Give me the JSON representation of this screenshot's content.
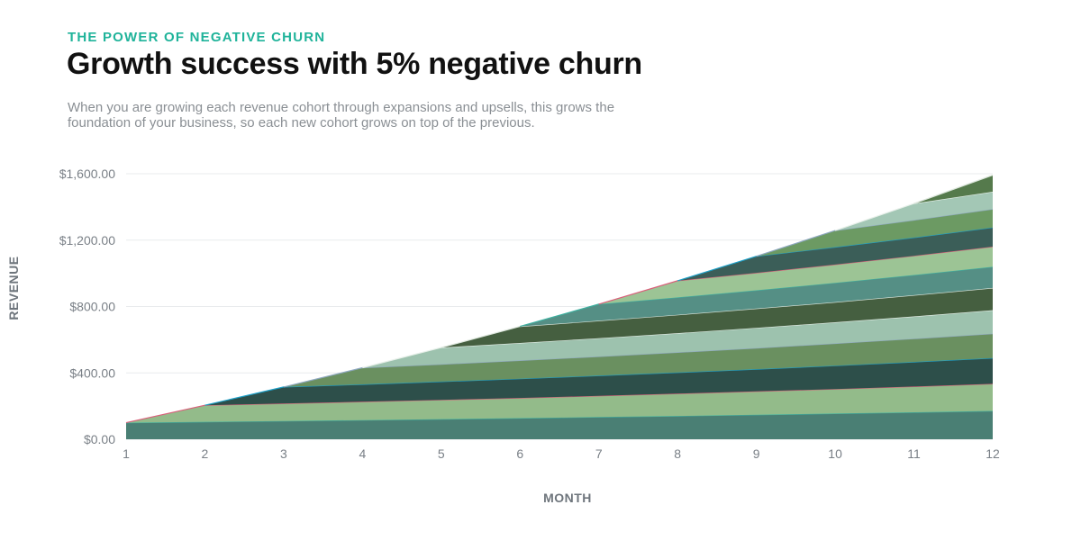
{
  "header": {
    "eyebrow": "THE POWER OF NEGATIVE CHURN",
    "title": "Growth success with 5% negative churn",
    "subtitle": "When you are growing each revenue cohort through expansions and upsells, this grows the foundation of your business, so each new cohort grows on top of the previous."
  },
  "chart_data": {
    "type": "area",
    "stacked": true,
    "xlabel": "MONTH",
    "ylabel": "REVENUE",
    "x": [
      1,
      2,
      3,
      4,
      5,
      6,
      7,
      8,
      9,
      10,
      11,
      12
    ],
    "ylim": [
      0,
      1600
    ],
    "yticks": [
      0,
      400,
      800,
      1200,
      1600
    ],
    "ytick_labels": [
      "$0.00",
      "$400.00",
      "$800.00",
      "$1,200.00",
      "$1,600.00"
    ],
    "grid": true,
    "legend": "none",
    "series": [
      {
        "start_month": 1,
        "values": [
          100,
          105,
          110.25,
          115.76,
          121.55,
          127.63,
          134.01,
          140.71,
          147.75,
          155.13,
          162.89,
          171.03
        ],
        "fill": "#4a7f74",
        "line": "#3fb0a0"
      },
      {
        "start_month": 2,
        "values": [
          0,
          100,
          105,
          110.25,
          115.76,
          121.55,
          127.63,
          134.01,
          140.71,
          147.75,
          155.13,
          162.89
        ],
        "fill": "#93bb8a",
        "line": "#d9607a"
      },
      {
        "start_month": 3,
        "values": [
          0,
          0,
          100,
          105,
          110.25,
          115.76,
          121.55,
          127.63,
          134.01,
          140.71,
          147.75,
          155.13
        ],
        "fill": "#2d4f4a",
        "line": "#1ea0c8"
      },
      {
        "start_month": 4,
        "values": [
          0,
          0,
          0,
          100,
          105,
          110.25,
          115.76,
          121.55,
          127.63,
          134.01,
          140.71,
          147.75
        ],
        "fill": "#6a9060",
        "line": "#8fa8c0"
      },
      {
        "start_month": 5,
        "values": [
          0,
          0,
          0,
          0,
          100,
          105,
          110.25,
          115.76,
          121.55,
          127.63,
          134.01,
          140.71
        ],
        "fill": "#9dc2ae",
        "line": "#e8f0ea"
      },
      {
        "start_month": 6,
        "values": [
          0,
          0,
          0,
          0,
          0,
          100,
          105,
          110.25,
          115.76,
          121.55,
          127.63,
          134.01
        ],
        "fill": "#455f40",
        "line": "#dfe8df"
      },
      {
        "start_month": 7,
        "values": [
          0,
          0,
          0,
          0,
          0,
          0,
          100,
          105,
          110.25,
          115.76,
          121.55,
          127.63
        ],
        "fill": "#558f85",
        "line": "#3fb0a0"
      },
      {
        "start_month": 8,
        "values": [
          0,
          0,
          0,
          0,
          0,
          0,
          0,
          100,
          105,
          110.25,
          115.76,
          121.55
        ],
        "fill": "#9cc495",
        "line": "#d9607a"
      },
      {
        "start_month": 9,
        "values": [
          0,
          0,
          0,
          0,
          0,
          0,
          0,
          0,
          100,
          105,
          110.25,
          115.76
        ],
        "fill": "#3b5e58",
        "line": "#1ea0c8"
      },
      {
        "start_month": 10,
        "values": [
          0,
          0,
          0,
          0,
          0,
          0,
          0,
          0,
          0,
          100,
          105,
          110.25
        ],
        "fill": "#6c9a63",
        "line": "#8fa8c0"
      },
      {
        "start_month": 11,
        "values": [
          0,
          0,
          0,
          0,
          0,
          0,
          0,
          0,
          0,
          0,
          100,
          105
        ],
        "fill": "#a3c7b5",
        "line": "#e8f0ea"
      },
      {
        "start_month": 12,
        "values": [
          0,
          0,
          0,
          0,
          0,
          0,
          0,
          0,
          0,
          0,
          0,
          100
        ],
        "fill": "#557a4c",
        "line": "#dfe8df"
      }
    ]
  }
}
